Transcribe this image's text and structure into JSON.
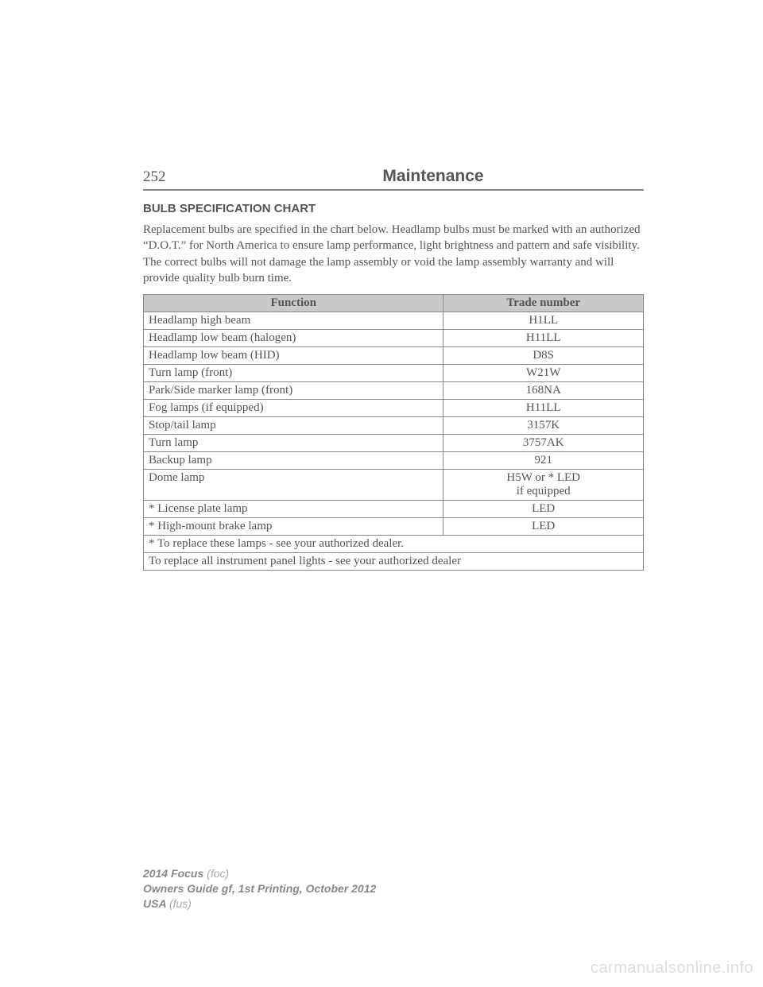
{
  "page_number": "252",
  "chapter_title": "Maintenance",
  "section_heading": "BULB SPECIFICATION CHART",
  "intro_paragraph": "Replacement bulbs are specified in the chart below. Headlamp bulbs must be marked with an authorized “D.O.T.” for North America to ensure lamp performance, light brightness and pattern and safe visibility. The correct bulbs will not damage the lamp assembly or void the lamp assembly warranty and will provide quality bulb burn time.",
  "table": {
    "columns": [
      "Function",
      "Trade number"
    ],
    "header_bg": "#c9c9c9",
    "border_color": "#888888",
    "rows": [
      [
        "Headlamp high beam",
        "H1LL"
      ],
      [
        "Headlamp low beam (halogen)",
        "H11LL"
      ],
      [
        "Headlamp low beam (HID)",
        "D8S"
      ],
      [
        "Turn lamp (front)",
        "W21W"
      ],
      [
        "Park/Side marker lamp (front)",
        "168NA"
      ],
      [
        "Fog lamps (if equipped)",
        "H11LL"
      ],
      [
        "Stop/tail lamp",
        "3157K"
      ],
      [
        "Turn lamp",
        "3757AK"
      ],
      [
        "Backup lamp",
        "921"
      ],
      [
        "Dome lamp",
        "H5W or * LED\nif equipped"
      ],
      [
        "* License plate lamp",
        "LED"
      ],
      [
        "* High-mount brake lamp",
        "LED"
      ]
    ],
    "footnotes": [
      "* To replace these lamps - see your authorized dealer.",
      "To replace all instrument panel lights - see your authorized dealer"
    ]
  },
  "footer": {
    "line1_bold": "2014 Focus",
    "line1_code": "(foc)",
    "line2": "Owners Guide gf, 1st Printing, October 2012",
    "line3_bold": "USA",
    "line3_code": "(fus)"
  },
  "watermark": "carmanualsonline.info",
  "colors": {
    "text": "#555555",
    "footer_text": "#888888",
    "watermark": "#dddddd",
    "background": "#ffffff"
  },
  "fonts": {
    "body_family": "Times New Roman",
    "heading_family": "Arial",
    "body_size_pt": 11,
    "heading_size_pt": 11,
    "chapter_size_pt": 16
  }
}
